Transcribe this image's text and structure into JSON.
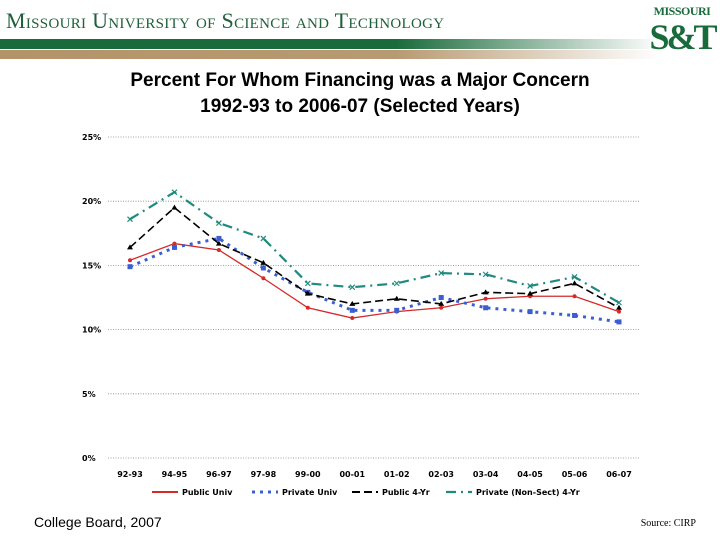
{
  "header": {
    "university": "Missouri University of Science and Technology",
    "logo_top": "MISSOURI",
    "logo_bottom": "S&T",
    "colors": {
      "green": "#1a6b3c",
      "tan": "#b3936a"
    }
  },
  "title_line1": "Percent For Whom Financing was a Major Concern",
  "title_line2": "1992-93 to 2006-07 (Selected Years)",
  "footer": {
    "left": "College Board, 2007",
    "right": "Source: CIRP"
  },
  "chart_data": {
    "type": "line",
    "categories": [
      "92-93",
      "94-95",
      "96-97",
      "97-98",
      "99-00",
      "00-01",
      "01-02",
      "02-03",
      "03-04",
      "04-05",
      "05-06",
      "06-07"
    ],
    "ylim": [
      0,
      25
    ],
    "yticks": [
      "0%",
      "5%",
      "10%",
      "15%",
      "20%",
      "25%"
    ],
    "grid": true,
    "legend": "bottom",
    "series": [
      {
        "name": "Public Univ",
        "color": "#d42a2a",
        "values": [
          15.4,
          16.7,
          16.2,
          14.0,
          11.7,
          10.9,
          11.4,
          11.7,
          12.4,
          12.6,
          12.6,
          11.4
        ]
      },
      {
        "name": "Private Univ",
        "color": "#3c5fcf",
        "values": [
          14.9,
          16.4,
          17.1,
          14.8,
          12.9,
          11.5,
          11.5,
          12.5,
          11.7,
          11.4,
          11.1,
          10.6
        ]
      },
      {
        "name": "Public 4-Yr",
        "color": "#000000",
        "values": [
          16.4,
          19.5,
          16.7,
          15.2,
          12.8,
          12.0,
          12.4,
          12.0,
          12.9,
          12.8,
          13.6,
          11.7
        ]
      },
      {
        "name": "Private (Non-Sect) 4-Yr",
        "color": "#1f8a80",
        "values": [
          18.6,
          20.7,
          18.3,
          17.1,
          13.6,
          13.3,
          13.6,
          14.4,
          14.3,
          13.4,
          14.1,
          12.1
        ]
      }
    ]
  }
}
